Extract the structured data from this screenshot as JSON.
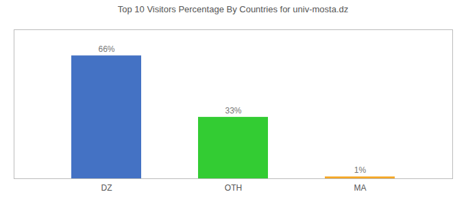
{
  "chart_data": {
    "type": "bar",
    "title": "Top 10 Visitors Percentage By Countries for univ-mosta.dz",
    "categories": [
      "DZ",
      "OTH",
      "MA"
    ],
    "values": [
      66,
      33,
      1
    ],
    "value_labels": [
      "66%",
      "33%",
      "1%"
    ],
    "data_labels": true,
    "colors": [
      "#4472c4",
      "#33cc33",
      "#f5a623"
    ],
    "ylim": [
      0,
      80
    ],
    "tick_labels": "x",
    "grid": false
  }
}
